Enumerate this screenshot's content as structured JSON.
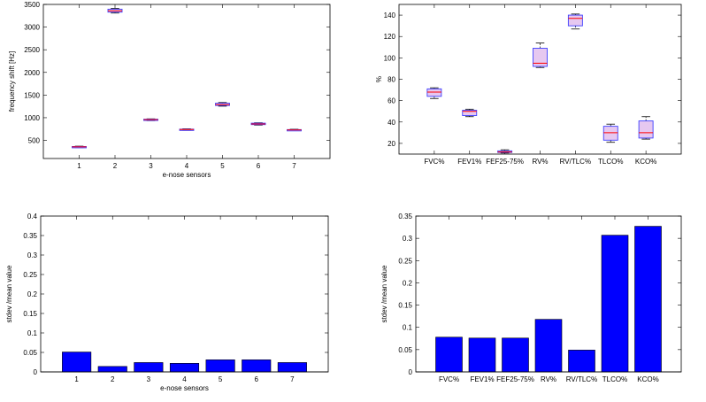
{
  "chart_data": [
    {
      "type": "box",
      "xlabel": "e-nose sensors",
      "ylabel": "frequency shift [Hz]",
      "categories": [
        "1",
        "2",
        "3",
        "4",
        "5",
        "6",
        "7"
      ],
      "ylim": [
        100,
        3500
      ],
      "yticks": [
        "500",
        "1000",
        "1500",
        "2000",
        "2500",
        "3000",
        "3500"
      ],
      "boxes": [
        {
          "min": 340,
          "q1": 348,
          "median": 357,
          "q3": 365,
          "max": 372
        },
        {
          "min": 3310,
          "q1": 3330,
          "median": 3360,
          "q3": 3395,
          "max": 3410
        },
        {
          "min": 935,
          "q1": 948,
          "median": 958,
          "q3": 968,
          "max": 975
        },
        {
          "min": 722,
          "q1": 732,
          "median": 740,
          "q3": 748,
          "max": 755
        },
        {
          "min": 1255,
          "q1": 1270,
          "median": 1290,
          "q3": 1320,
          "max": 1335
        },
        {
          "min": 838,
          "q1": 848,
          "median": 862,
          "q3": 880,
          "max": 888
        },
        {
          "min": 715,
          "q1": 722,
          "median": 730,
          "q3": 738,
          "max": 745
        }
      ]
    },
    {
      "type": "box",
      "xlabel": "",
      "ylabel": "%",
      "categories": [
        "FVC%",
        "FEV1%",
        "FEF25-75%",
        "RV%",
        "RV/TLC%",
        "TLCO%",
        "KCO%"
      ],
      "ylim": [
        10,
        150
      ],
      "yticks": [
        "20",
        "40",
        "60",
        "80",
        "100",
        "120",
        "140"
      ],
      "boxes": [
        {
          "min": 62,
          "q1": 64,
          "median": 68,
          "q3": 71,
          "max": 72
        },
        {
          "min": 45,
          "q1": 46,
          "median": 50,
          "q3": 51,
          "max": 52
        },
        {
          "min": 11,
          "q1": 11.5,
          "median": 12,
          "q3": 13,
          "max": 14
        },
        {
          "min": 91,
          "q1": 92,
          "median": 95,
          "q3": 109,
          "max": 114
        },
        {
          "min": 127,
          "q1": 130,
          "median": 137,
          "q3": 140,
          "max": 141
        },
        {
          "min": 21,
          "q1": 23,
          "median": 30,
          "q3": 36,
          "max": 38
        },
        {
          "min": 24,
          "q1": 25,
          "median": 30,
          "q3": 41,
          "max": 45
        }
      ]
    },
    {
      "type": "bar",
      "xlabel": "e-nose sensors",
      "ylabel": "stdev /mean value",
      "categories": [
        "1",
        "2",
        "3",
        "4",
        "5",
        "6",
        "7"
      ],
      "values": [
        0.051,
        0.014,
        0.024,
        0.022,
        0.031,
        0.031,
        0.024
      ],
      "ylim": [
        0,
        0.4
      ],
      "yticks": [
        "0",
        "0.05",
        "0.1",
        "0.15",
        "0.2",
        "0.25",
        "0.3",
        "0.35",
        "0.4"
      ]
    },
    {
      "type": "bar",
      "xlabel": "",
      "ylabel": "stdev /mean value",
      "categories": [
        "FVC%",
        "FEV1%",
        "FEF25-75%",
        "RV%",
        "RV/TLC%",
        "TLCO%",
        "KCO%"
      ],
      "values": [
        0.078,
        0.076,
        0.076,
        0.118,
        0.049,
        0.307,
        0.327
      ],
      "ylim": [
        0,
        0.35
      ],
      "yticks": [
        "0",
        "0.05",
        "0.1",
        "0.15",
        "0.2",
        "0.25",
        "0.3",
        "0.35"
      ]
    }
  ],
  "colors": {
    "box_edge": "#4040ff",
    "box_fill": "#e6c8f0",
    "median": "#ff0000",
    "bar_fill": "#0000ff",
    "bar_edge": "#000000"
  }
}
